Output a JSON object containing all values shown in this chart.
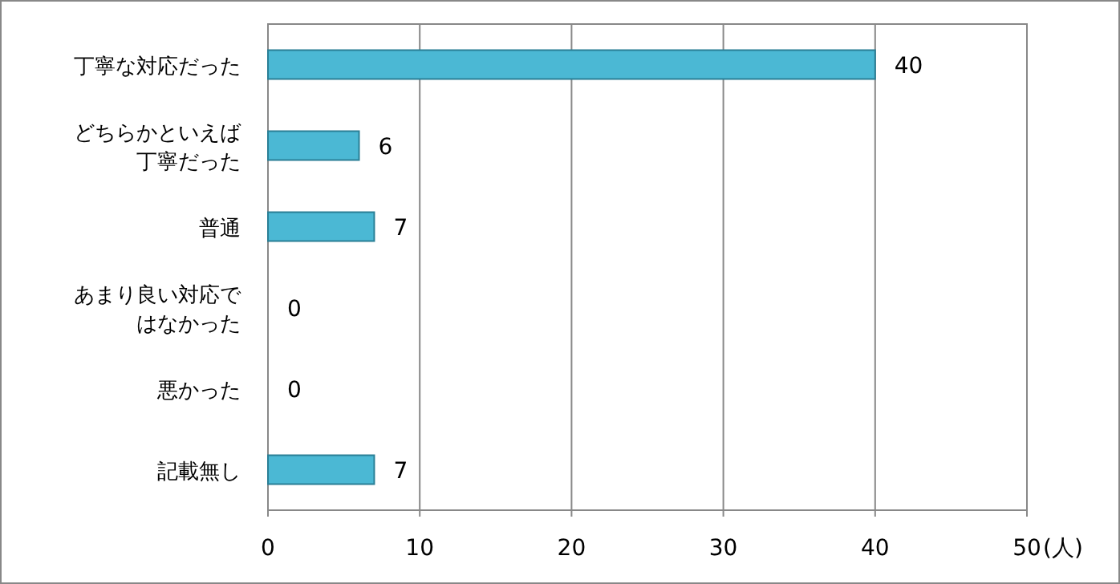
{
  "chart_data": {
    "type": "bar",
    "orientation": "horizontal",
    "categories": [
      "丁寧な対応だった",
      "どちらかといえば丁寧だった",
      "普通",
      "あまり良い対応ではなかった",
      "悪かった",
      "記載無し"
    ],
    "values": [
      40,
      6,
      7,
      0,
      0,
      7
    ],
    "color": "#4bb8d4",
    "xlim": [
      0,
      50
    ],
    "xticks": [
      0,
      10,
      20,
      30,
      40,
      50
    ],
    "xlabel": "(人)",
    "grid": "x",
    "data_labels": true
  }
}
